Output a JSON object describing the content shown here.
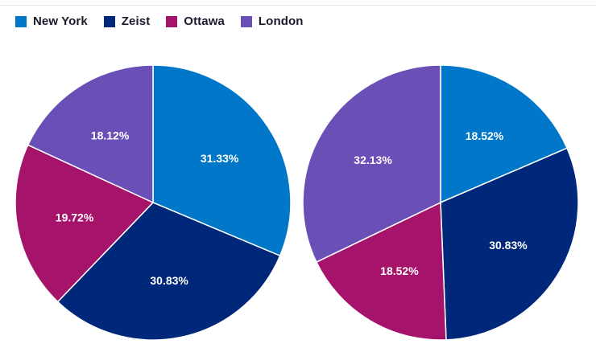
{
  "legend": [
    {
      "label": "New York",
      "color": "#0077c8"
    },
    {
      "label": "Zeist",
      "color": "#00287a"
    },
    {
      "label": "Ottawa",
      "color": "#a5136a"
    },
    {
      "label": "London",
      "color": "#6a4fb7"
    }
  ],
  "chart_data": [
    {
      "type": "pie",
      "categories": [
        "New York",
        "Zeist",
        "Ottawa",
        "London"
      ],
      "values": [
        31.33,
        30.83,
        19.72,
        18.12
      ],
      "labels": [
        "31.33%",
        "30.83%",
        "19.72%",
        "18.12%"
      ],
      "colors": [
        "#0077c8",
        "#00287a",
        "#a5136a",
        "#6a4fb7"
      ],
      "legend_position": "top-left"
    },
    {
      "type": "pie",
      "categories": [
        "New York",
        "Zeist",
        "Ottawa",
        "London"
      ],
      "values": [
        18.52,
        30.83,
        18.52,
        32.13
      ],
      "labels": [
        "18.52%",
        "30.83%",
        "18.52%",
        "32.13%"
      ],
      "colors": [
        "#0077c8",
        "#00287a",
        "#a5136a",
        "#6a4fb7"
      ],
      "legend_position": "top-left"
    }
  ]
}
